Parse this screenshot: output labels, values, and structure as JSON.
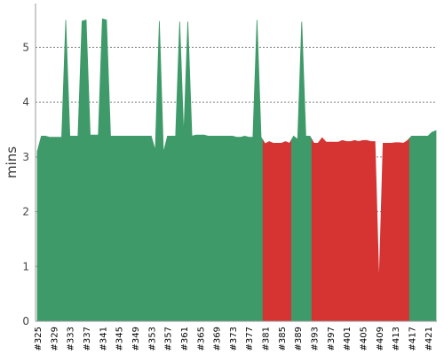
{
  "chart_data": {
    "type": "area",
    "ylabel": "mins",
    "xlabel": "",
    "ylim": [
      0,
      5.8
    ],
    "y_ticks": [
      "0",
      "1",
      "2",
      "3",
      "4",
      "5"
    ],
    "grid": "horizontal",
    "x_range": [
      325,
      423
    ],
    "x_tick_labels": [
      "#325",
      "#329",
      "#333",
      "#337",
      "#341",
      "#345",
      "#349",
      "#353",
      "#357",
      "#361",
      "#365",
      "#369",
      "#373",
      "#377",
      "#381",
      "#385",
      "#389",
      "#393",
      "#397",
      "#401",
      "#405",
      "#409",
      "#413",
      "#417",
      "#421"
    ],
    "x": [
      325,
      326,
      327,
      328,
      329,
      330,
      331,
      332,
      333,
      334,
      335,
      336,
      337,
      338,
      339,
      340,
      341,
      342,
      343,
      344,
      345,
      346,
      347,
      348,
      349,
      350,
      351,
      352,
      353,
      354,
      355,
      356,
      357,
      358,
      359,
      360,
      361,
      362,
      363,
      364,
      365,
      366,
      367,
      368,
      369,
      370,
      371,
      372,
      373,
      374,
      375,
      376,
      377,
      378,
      379,
      380,
      381,
      382,
      383,
      384,
      385,
      386,
      387,
      388,
      389,
      390,
      391,
      392,
      393,
      394,
      395,
      396,
      397,
      398,
      399,
      400,
      401,
      402,
      403,
      404,
      405,
      406,
      407,
      408,
      409,
      410,
      411,
      412,
      413,
      414,
      415,
      416,
      417,
      418,
      419,
      420,
      421,
      422,
      423
    ],
    "values": [
      3.1,
      3.38,
      3.38,
      3.36,
      3.36,
      3.36,
      3.36,
      5.5,
      3.38,
      3.38,
      3.38,
      5.48,
      5.5,
      3.4,
      3.4,
      3.4,
      5.52,
      5.5,
      3.38,
      3.38,
      3.38,
      3.38,
      3.38,
      3.38,
      3.38,
      3.38,
      3.38,
      3.38,
      3.38,
      3.12,
      5.48,
      3.08,
      3.38,
      3.38,
      3.38,
      5.47,
      3.38,
      5.47,
      3.38,
      3.4,
      3.4,
      3.4,
      3.38,
      3.38,
      3.38,
      3.38,
      3.38,
      3.38,
      3.38,
      3.36,
      3.36,
      3.38,
      3.36,
      3.36,
      5.5,
      3.36,
      3.24,
      3.28,
      3.25,
      3.25,
      3.25,
      3.28,
      3.25,
      3.38,
      3.32,
      5.47,
      3.38,
      3.38,
      3.25,
      3.25,
      3.35,
      3.27,
      3.27,
      3.27,
      3.27,
      3.3,
      3.28,
      3.28,
      3.3,
      3.28,
      3.3,
      3.3,
      3.28,
      3.28,
      0.65,
      3.25,
      3.25,
      3.25,
      3.26,
      3.26,
      3.25,
      3.3,
      3.38,
      3.38,
      3.38,
      3.38,
      3.38,
      3.45,
      3.48
    ],
    "status": [
      "success",
      "success",
      "success",
      "success",
      "success",
      "success",
      "success",
      "success",
      "success",
      "success",
      "success",
      "success",
      "success",
      "success",
      "success",
      "success",
      "success",
      "success",
      "success",
      "success",
      "success",
      "success",
      "success",
      "success",
      "success",
      "success",
      "success",
      "success",
      "success",
      "success",
      "success",
      "success",
      "success",
      "success",
      "success",
      "success",
      "success",
      "success",
      "success",
      "success",
      "success",
      "success",
      "success",
      "success",
      "success",
      "success",
      "success",
      "success",
      "success",
      "success",
      "success",
      "success",
      "success",
      "success",
      "success",
      "success",
      "failure",
      "failure",
      "failure",
      "failure",
      "failure",
      "failure",
      "failure",
      "success",
      "success",
      "success",
      "success",
      "success",
      "failure",
      "failure",
      "failure",
      "failure",
      "failure",
      "failure",
      "failure",
      "failure",
      "failure",
      "failure",
      "failure",
      "failure",
      "failure",
      "failure",
      "failure",
      "failure",
      "failure",
      "failure",
      "failure",
      "failure",
      "failure",
      "failure",
      "failure",
      "failure",
      "success",
      "success",
      "success",
      "success",
      "success",
      "success",
      "success"
    ],
    "colors": {
      "success": "#3f9a6a",
      "failure": "#d63333"
    }
  }
}
